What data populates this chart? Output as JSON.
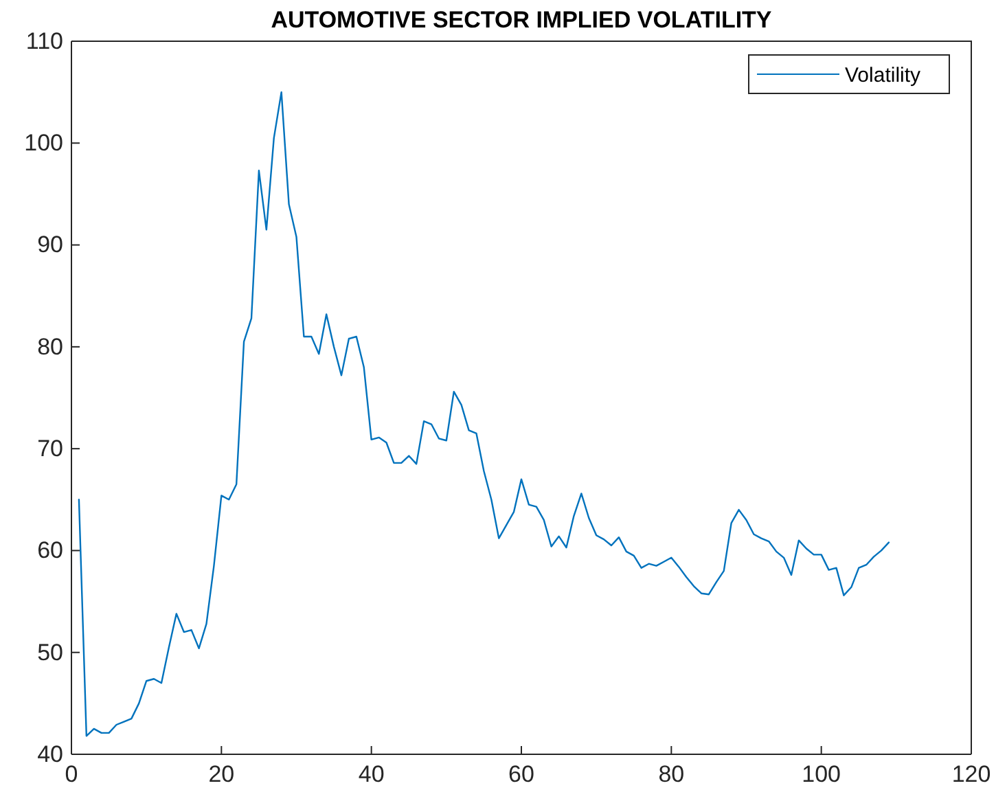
{
  "chart_data": {
    "type": "line",
    "title": "AUTOMOTIVE SECTOR IMPLIED VOLATILITY",
    "x": [
      1,
      2,
      3,
      4,
      5,
      6,
      7,
      8,
      9,
      10,
      11,
      12,
      13,
      14,
      15,
      16,
      17,
      18,
      19,
      20,
      21,
      22,
      23,
      24,
      25,
      26,
      27,
      28,
      29,
      30,
      31,
      32,
      33,
      34,
      35,
      36,
      37,
      38,
      39,
      40,
      41,
      42,
      43,
      44,
      45,
      46,
      47,
      48,
      49,
      50,
      51,
      52,
      53,
      54,
      55,
      56,
      57,
      58,
      59,
      60,
      61,
      62,
      63,
      64,
      65,
      66,
      67,
      68,
      69,
      70,
      71,
      72,
      73,
      74,
      75,
      76,
      77,
      78,
      79,
      80,
      81,
      82,
      83,
      84,
      85,
      86,
      87,
      88,
      89,
      90,
      91,
      92,
      93,
      94,
      95,
      96,
      97,
      98,
      99,
      100,
      101,
      102,
      103,
      104,
      105,
      106,
      107,
      108,
      109
    ],
    "series": [
      {
        "name": "Volatility",
        "color": "#0072bd",
        "values": [
          65,
          41.8,
          42.5,
          42.1,
          42.1,
          42.9,
          43.2,
          43.5,
          45,
          47.2,
          47.4,
          47,
          50.5,
          53.8,
          52,
          52.2,
          50.4,
          52.8,
          58.5,
          65.4,
          65,
          66.5,
          80.5,
          82.8,
          97.3,
          91.5,
          100.5,
          105,
          94,
          90.8,
          81,
          81,
          79.3,
          83.2,
          80,
          77.2,
          80.8,
          81,
          78,
          70.9,
          71.1,
          70.6,
          68.6,
          68.6,
          69.3,
          68.5,
          72.7,
          72.4,
          71,
          70.8,
          75.6,
          74.3,
          71.8,
          71.5,
          67.8,
          65,
          61.2,
          62.5,
          63.8,
          67,
          64.5,
          64.3,
          63,
          60.4,
          61.4,
          60.3,
          63.4,
          65.6,
          63.2,
          61.5,
          61.1,
          60.5,
          61.3,
          59.9,
          59.5,
          58.3,
          58.7,
          58.5,
          58.9,
          59.3,
          58.4,
          57.4,
          56.5,
          55.8,
          55.7,
          56.9,
          58,
          62.7,
          64,
          63,
          61.6,
          61.2,
          60.9,
          59.9,
          59.3,
          57.6,
          61,
          60.2,
          59.6,
          59.6,
          58.1,
          58.3,
          55.6,
          56.4,
          58.3,
          58.6,
          59.4,
          60,
          60.8
        ]
      }
    ],
    "xlim": [
      0,
      120
    ],
    "xticks": [
      0,
      20,
      40,
      60,
      80,
      100,
      120
    ],
    "ylim": [
      40,
      110
    ],
    "yticks": [
      40,
      50,
      60,
      70,
      80,
      90,
      100,
      110
    ],
    "grid": false,
    "legend": "top right",
    "marker": "none",
    "line_style": "solid"
  }
}
